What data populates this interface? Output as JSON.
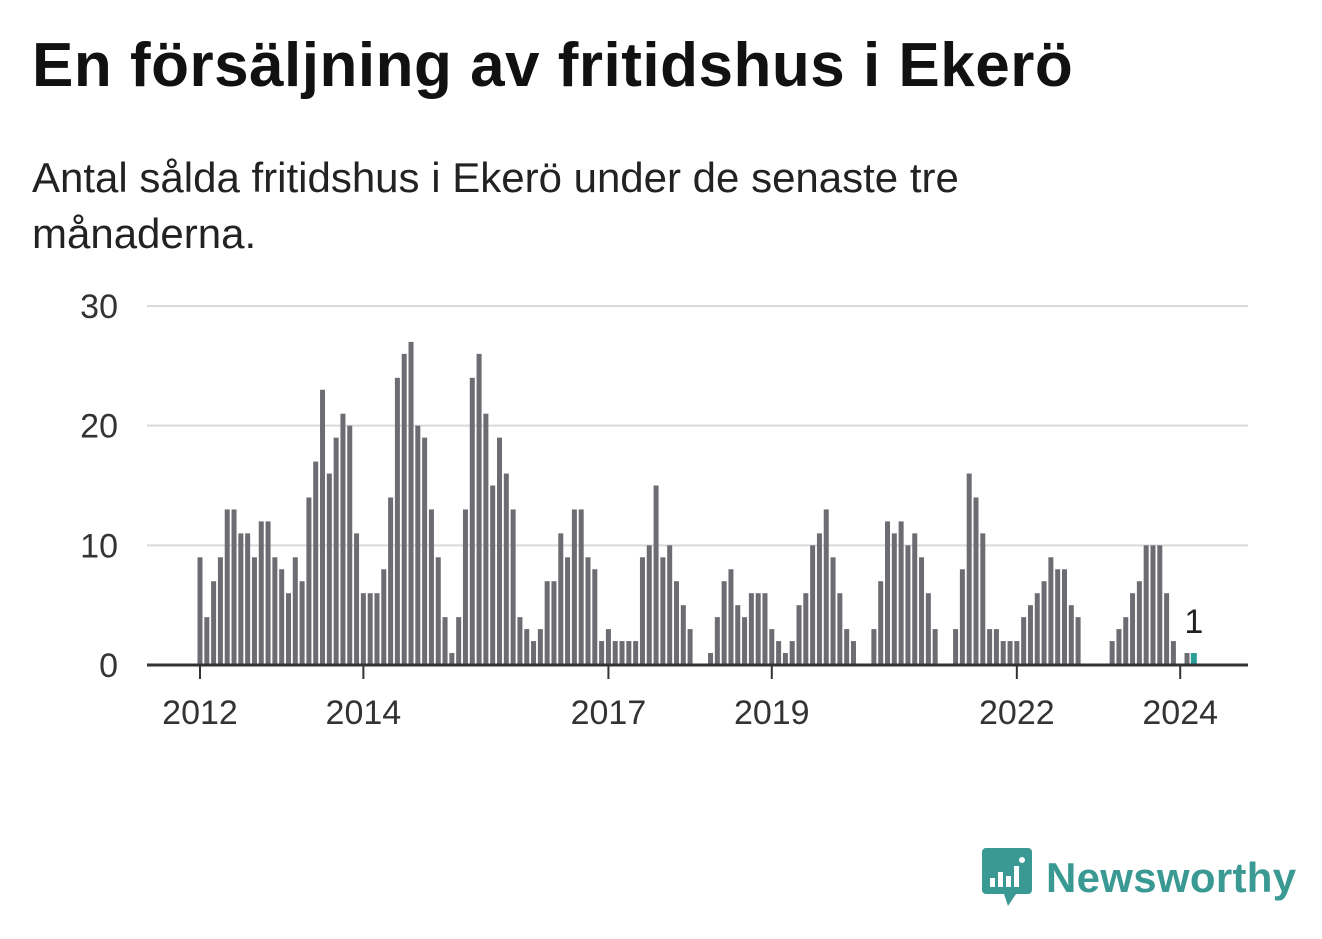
{
  "title": "En försäljning av fritidshus i Ekerö",
  "subtitle": "Antal sålda fritidshus i Ekerö under de senaste tre månaderna.",
  "brand": {
    "name": "Newsworthy",
    "color": "#3a9a93",
    "icon": "newsworthy-logo-icon"
  },
  "colors": {
    "bar": "#6d6c72",
    "highlight": "#2a9d96",
    "grid": "#d9d9d9",
    "axis": "#333333"
  },
  "chart_data": {
    "type": "bar",
    "ylim": [
      0,
      30
    ],
    "yticks": [
      0,
      10,
      20,
      30
    ],
    "grid": true,
    "x_start": "2012-01",
    "xticks": [
      {
        "label": "2012",
        "index": 0
      },
      {
        "label": "2014",
        "index": 24
      },
      {
        "label": "2017",
        "index": 60
      },
      {
        "label": "2019",
        "index": 84
      },
      {
        "label": "2022",
        "index": 120
      },
      {
        "label": "2024",
        "index": 144
      }
    ],
    "values": [
      9,
      4,
      7,
      9,
      13,
      13,
      11,
      11,
      9,
      12,
      12,
      9,
      8,
      6,
      9,
      7,
      14,
      17,
      23,
      16,
      19,
      21,
      20,
      11,
      6,
      6,
      6,
      8,
      14,
      24,
      26,
      27,
      20,
      19,
      13,
      9,
      4,
      1,
      4,
      13,
      24,
      26,
      21,
      15,
      19,
      16,
      13,
      4,
      3,
      2,
      3,
      7,
      7,
      11,
      9,
      13,
      13,
      9,
      8,
      2,
      3,
      2,
      2,
      2,
      2,
      9,
      10,
      15,
      9,
      10,
      7,
      5,
      3,
      0,
      0,
      1,
      4,
      7,
      8,
      5,
      4,
      6,
      6,
      6,
      3,
      2,
      1,
      2,
      5,
      6,
      10,
      11,
      13,
      9,
      6,
      3,
      2,
      0,
      0,
      3,
      7,
      12,
      11,
      12,
      10,
      11,
      9,
      6,
      3,
      0,
      0,
      3,
      8,
      16,
      14,
      11,
      3,
      3,
      2,
      2,
      2,
      4,
      5,
      6,
      7,
      9,
      8,
      8,
      5,
      4,
      0,
      0,
      0,
      0,
      2,
      3,
      4,
      6,
      7,
      10,
      10,
      10,
      6,
      2,
      0,
      1
    ],
    "highlight_index": 146,
    "highlight_label": "1"
  }
}
